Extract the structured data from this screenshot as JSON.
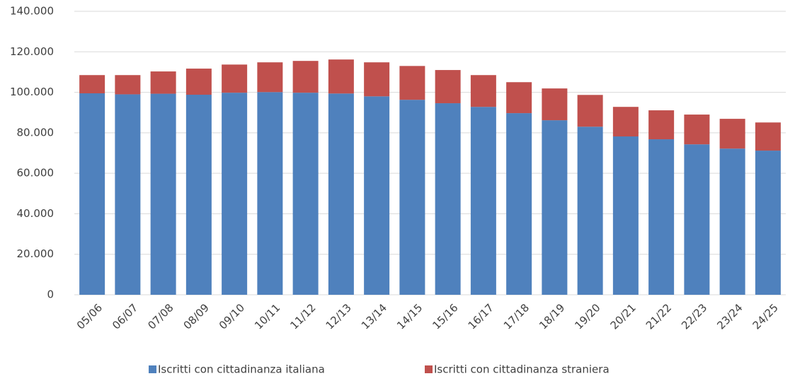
{
  "chart_data": {
    "type": "stacked_bar",
    "categories": [
      "05/06",
      "06/07",
      "07/08",
      "08/09",
      "09/10",
      "10/11",
      "11/12",
      "12/13",
      "13/14",
      "14/15",
      "15/16",
      "16/17",
      "17/18",
      "18/19",
      "19/20",
      "20/21",
      "21/22",
      "22/23",
      "23/24",
      "24/25"
    ],
    "series": [
      {
        "name": "Iscritti con cittadinanza italiana",
        "color": "#4f81bd",
        "values": [
          99500,
          99000,
          99300,
          98800,
          99800,
          100100,
          99800,
          99400,
          98000,
          96300,
          94600,
          92800,
          89700,
          86200,
          83000,
          78200,
          76800,
          74300,
          72200,
          71200
        ]
      },
      {
        "name": "Iscritti con cittadinanza straniera",
        "color": "#c0504d",
        "values": [
          9000,
          9500,
          11000,
          12900,
          13900,
          14700,
          15700,
          16800,
          16800,
          16700,
          16400,
          15700,
          15300,
          15700,
          15700,
          14600,
          14300,
          14700,
          14700,
          13900
        ]
      }
    ],
    "ylim": [
      0,
      140000
    ],
    "yticks": [
      0,
      {
        "value": 20000,
        "label": "20.000"
      },
      {
        "value": 40000,
        "label": "40.000"
      },
      {
        "value": 60000,
        "label": "60.000"
      },
      {
        "value": 80000,
        "label": "80.000"
      },
      {
        "value": 100000,
        "label": "100.000"
      },
      {
        "value": 120000,
        "label": "120.000"
      },
      {
        "value": 140000,
        "label": "140.000"
      }
    ],
    "grid": true,
    "legend": "bottom"
  }
}
